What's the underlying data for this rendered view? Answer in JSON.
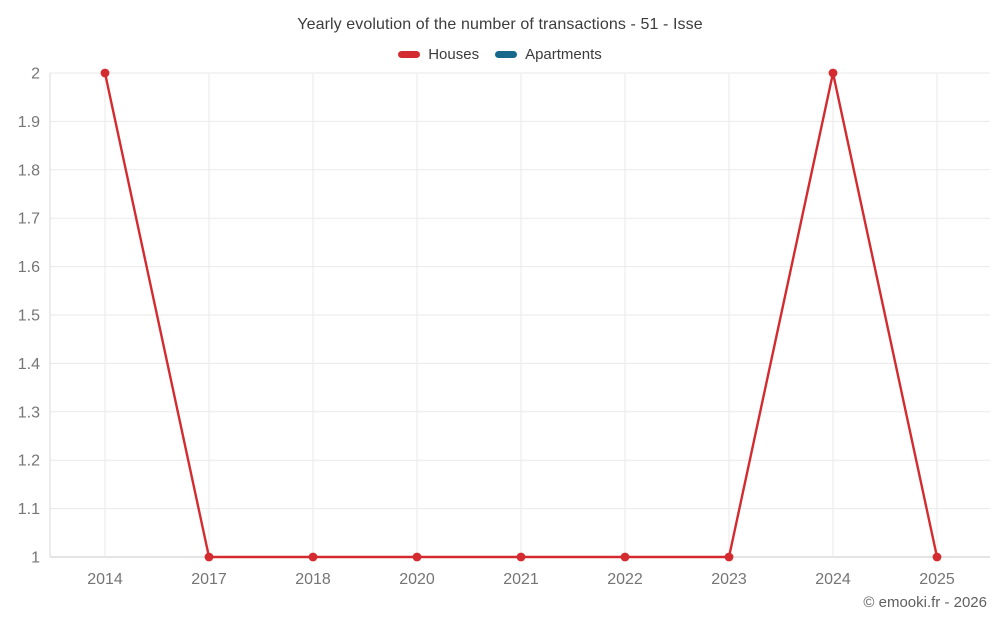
{
  "chart_data": {
    "type": "line",
    "title": "Yearly evolution of the number of transactions - 51 - Isse",
    "categories": [
      "2014",
      "2017",
      "2018",
      "2020",
      "2021",
      "2022",
      "2023",
      "2024",
      "2025"
    ],
    "series": [
      {
        "name": "Houses",
        "color": "#d32b2f",
        "values": [
          2,
          1,
          1,
          1,
          1,
          1,
          1,
          2,
          1
        ]
      },
      {
        "name": "Apartments",
        "color": "#16698a",
        "values": []
      }
    ],
    "xlabel": "",
    "ylabel": "",
    "ylim": [
      1,
      2
    ],
    "yticks": [
      1,
      1.1,
      1.2,
      1.3,
      1.4,
      1.5,
      1.6,
      1.7,
      1.8,
      1.9,
      2
    ],
    "grid": true,
    "legend_position": "top"
  },
  "footer": {
    "copyright": "© emooki.fr - 2026"
  },
  "colors": {
    "gridline": "#e9eaeb",
    "axis_bottom": "#c7c8ca",
    "axis_left": "#d9dadb",
    "tick_label": "#757575",
    "title_text": "#3c3c3c"
  }
}
